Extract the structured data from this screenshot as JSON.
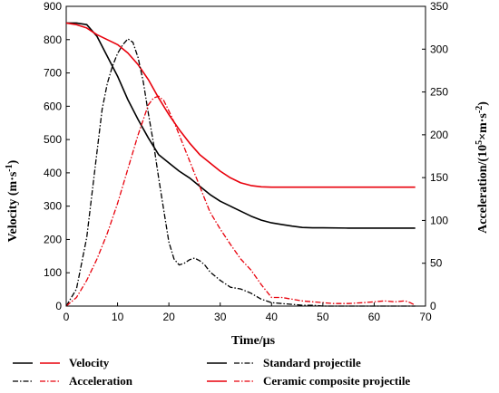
{
  "chart_data": {
    "type": "line",
    "xlabel": "Time/μs",
    "ylabel_left": "Velocity (m·s",
    "ylabel_left_sup": "-1",
    "ylabel_left_end": ")",
    "ylabel_right": "Acceleration/(10",
    "ylabel_right_sup1": "5",
    "ylabel_right_mid": "×m·s",
    "ylabel_right_sup2": "-2",
    "ylabel_right_end": ")",
    "xlim": [
      0,
      70
    ],
    "ylim_left": [
      0,
      900
    ],
    "ylim_right": [
      0,
      350
    ],
    "xticks": [
      0,
      10,
      20,
      30,
      40,
      50,
      60,
      70
    ],
    "yticks_left": [
      0,
      100,
      200,
      300,
      400,
      500,
      600,
      700,
      800,
      900
    ],
    "yticks_right": [
      0,
      50,
      100,
      150,
      200,
      250,
      300,
      350
    ],
    "colors": {
      "standard": "#000000",
      "ceramic": "#e8000b"
    },
    "legend": {
      "velocity": "Velocity",
      "acceleration": "Acceleration",
      "standard": "Standard projectile",
      "ceramic": "Ceramic composite projectile"
    },
    "series": [
      {
        "quantity": "velocity",
        "group": "standard",
        "axis": "left",
        "style": "solid",
        "x": [
          0,
          2,
          4,
          6,
          8,
          10,
          12,
          14,
          16,
          18,
          20,
          22,
          24,
          26,
          28,
          30,
          32,
          34,
          36,
          38,
          40,
          42,
          44,
          46,
          48,
          50,
          55,
          60,
          65,
          68
        ],
        "y": [
          850,
          850,
          845,
          810,
          750,
          690,
          620,
          560,
          505,
          455,
          430,
          405,
          385,
          360,
          335,
          315,
          300,
          285,
          270,
          258,
          250,
          245,
          240,
          236,
          235,
          235,
          234,
          234,
          234,
          234
        ]
      },
      {
        "quantity": "velocity",
        "group": "ceramic",
        "axis": "left",
        "style": "solid",
        "x": [
          0,
          2,
          4,
          6,
          8,
          10,
          12,
          14,
          16,
          18,
          20,
          22,
          24,
          26,
          28,
          30,
          32,
          34,
          36,
          38,
          40,
          42,
          44,
          46,
          48,
          50,
          55,
          60,
          65,
          68
        ],
        "y": [
          850,
          845,
          835,
          815,
          800,
          785,
          760,
          725,
          680,
          625,
          575,
          530,
          490,
          455,
          430,
          405,
          385,
          370,
          362,
          358,
          357,
          357,
          357,
          357,
          357,
          357,
          357,
          357,
          357,
          357
        ]
      },
      {
        "quantity": "acceleration",
        "group": "standard",
        "axis": "right",
        "style": "dashdot",
        "x": [
          0,
          2,
          4,
          6,
          7,
          8,
          9,
          10,
          11,
          12,
          13,
          14,
          15,
          16,
          17,
          18,
          19,
          20,
          21,
          22,
          23,
          24,
          25,
          26,
          27,
          28,
          30,
          32,
          34,
          36,
          38,
          40,
          42,
          44,
          46,
          48,
          50,
          55,
          60,
          65,
          68
        ],
        "y": [
          0,
          20,
          80,
          180,
          230,
          260,
          280,
          295,
          305,
          312,
          308,
          290,
          262,
          225,
          190,
          150,
          112,
          75,
          55,
          48,
          50,
          54,
          56,
          53,
          48,
          40,
          30,
          22,
          20,
          15,
          8,
          4,
          3,
          2,
          1,
          1,
          0,
          0,
          0,
          0,
          0
        ]
      },
      {
        "quantity": "acceleration",
        "group": "ceramic",
        "axis": "right",
        "style": "dashdot",
        "x": [
          0,
          2,
          4,
          6,
          8,
          10,
          12,
          14,
          16,
          17,
          18,
          19,
          20,
          21,
          22,
          23,
          24,
          25,
          26,
          27,
          28,
          30,
          32,
          34,
          36,
          38,
          40,
          42,
          44,
          46,
          48,
          50,
          52,
          55,
          58,
          60,
          62,
          64,
          66,
          67,
          68
        ],
        "y": [
          0,
          10,
          30,
          55,
          85,
          120,
          160,
          200,
          235,
          243,
          245,
          240,
          228,
          215,
          200,
          185,
          170,
          155,
          140,
          125,
          110,
          90,
          72,
          55,
          42,
          25,
          10,
          10,
          8,
          6,
          5,
          4,
          3,
          3,
          4,
          5,
          6,
          5,
          6,
          4,
          1
        ]
      }
    ]
  }
}
